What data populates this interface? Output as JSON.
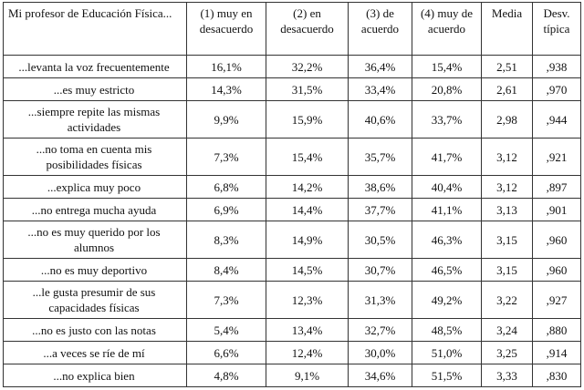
{
  "table": {
    "headers": [
      "Mi profesor de Educación Física...",
      "(1) muy en desacuerdo",
      "(2) en desacuerdo",
      "(3) de acuerdo",
      "(4) muy de acuerdo",
      "Media",
      "Desv. típica"
    ],
    "rows": [
      [
        "...levanta la voz frecuentemente",
        "16,1%",
        "32,2%",
        "36,4%",
        "15,4%",
        "2,51",
        ",938"
      ],
      [
        "...es muy estricto",
        "14,3%",
        "31,5%",
        "33,4%",
        "20,8%",
        "2,61",
        ",970"
      ],
      [
        "...siempre repite las mismas actividades",
        "9,9%",
        "15,9%",
        "40,6%",
        "33,7%",
        "2,98",
        ",944"
      ],
      [
        "...no toma en cuenta mis posibilidades físicas",
        "7,3%",
        "15,4%",
        "35,7%",
        "41,7%",
        "3,12",
        ",921"
      ],
      [
        "...explica muy poco",
        "6,8%",
        "14,2%",
        "38,6%",
        "40,4%",
        "3,12",
        ",897"
      ],
      [
        "...no entrega mucha ayuda",
        "6,9%",
        "14,4%",
        "37,7%",
        "41,1%",
        "3,13",
        ",901"
      ],
      [
        "...no es muy querido por los alumnos",
        "8,3%",
        "14,9%",
        "30,5%",
        "46,3%",
        "3,15",
        ",960"
      ],
      [
        "...no es muy deportivo",
        "8,4%",
        "14,5%",
        "30,7%",
        "46,5%",
        "3,15",
        ",960"
      ],
      [
        "...le gusta presumir de sus capacidades físicas",
        "7,3%",
        "12,3%",
        "31,3%",
        "49,2%",
        "3,22",
        ",927"
      ],
      [
        "...no es justo con las notas",
        "5,4%",
        "13,4%",
        "32,7%",
        "48,5%",
        "3,24",
        ",880"
      ],
      [
        "...a veces se ríe de mí",
        "6,6%",
        "12,4%",
        "30,0%",
        "51,0%",
        "3,25",
        ",914"
      ],
      [
        "...no explica bien",
        "4,8%",
        "9,1%",
        "34,6%",
        "51,5%",
        "3,33",
        ",830"
      ]
    ]
  }
}
